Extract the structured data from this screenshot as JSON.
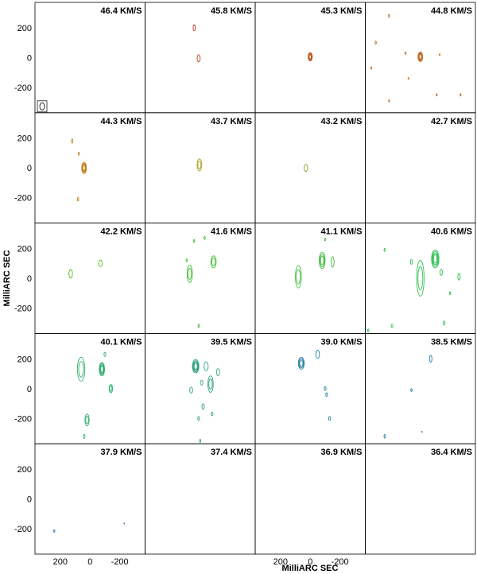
{
  "figure": {
    "xlabel": "MilliARC SEC",
    "ylabel": "MilliARC SEC",
    "x_ticks": [
      "200",
      "0",
      "-200"
    ],
    "y_ticks": [
      "200",
      "0",
      "-200"
    ],
    "beam_symbol": "beam-ellipse"
  },
  "chart_data": {
    "type": "contour",
    "xlim": [
      370,
      -370
    ],
    "ylim": [
      -370,
      370
    ],
    "units": "milliarcsec",
    "grid": false,
    "panels": [
      {
        "label": "46.4 KM/S",
        "color": "#c05020",
        "features": []
      },
      {
        "label": "45.8 KM/S",
        "color": "#c04020",
        "features": [
          {
            "x": 40,
            "y": 200,
            "r": [
              7,
              20
            ],
            "n": 1
          },
          {
            "x": 10,
            "y": -5,
            "r": [
              10,
              24
            ],
            "n": 1
          }
        ]
      },
      {
        "label": "45.3 KM/S",
        "color": "#c05520",
        "features": [
          {
            "x": 0,
            "y": 5,
            "r": [
              14,
              28
            ],
            "n": 4
          }
        ]
      },
      {
        "label": "44.8 KM/S",
        "color": "#c07030",
        "features": [
          {
            "x": 0,
            "y": 5,
            "r": [
              16,
              32
            ],
            "n": 5
          },
          {
            "x": 210,
            "y": 280,
            "r": [
              4,
              10
            ],
            "n": 1
          },
          {
            "x": 300,
            "y": 100,
            "r": [
              4,
              10
            ],
            "n": 1
          },
          {
            "x": 100,
            "y": 30,
            "r": [
              4,
              8
            ],
            "n": 1
          },
          {
            "x": 330,
            "y": -70,
            "r": [
              3,
              8
            ],
            "n": 1
          },
          {
            "x": -130,
            "y": 20,
            "r": [
              3,
              6
            ],
            "n": 1
          },
          {
            "x": 80,
            "y": -140,
            "r": [
              3,
              6
            ],
            "n": 1
          },
          {
            "x": -110,
            "y": -250,
            "r": [
              3,
              8
            ],
            "n": 1
          },
          {
            "x": -270,
            "y": -250,
            "r": [
              3,
              8
            ],
            "n": 1
          },
          {
            "x": 210,
            "y": -290,
            "r": [
              3,
              8
            ],
            "n": 1
          }
        ]
      },
      {
        "label": "44.3 KM/S",
        "color": "#c08020",
        "features": [
          {
            "x": 40,
            "y": 0,
            "r": [
              16,
              38
            ],
            "n": 4
          },
          {
            "x": 120,
            "y": 180,
            "r": [
              5,
              14
            ],
            "n": 1
          },
          {
            "x": 75,
            "y": 95,
            "r": [
              4,
              10
            ],
            "n": 1
          },
          {
            "x": 80,
            "y": -210,
            "r": [
              4,
              12
            ],
            "n": 1
          }
        ]
      },
      {
        "label": "43.7 KM/S",
        "color": "#a8a020",
        "features": [
          {
            "x": 5,
            "y": 20,
            "r": [
              16,
              40
            ],
            "n": 2
          }
        ]
      },
      {
        "label": "43.2 KM/S",
        "color": "#88a020",
        "features": [
          {
            "x": 30,
            "y": 0,
            "r": [
              12,
              24
            ],
            "n": 1
          }
        ]
      },
      {
        "label": "42.7 KM/S",
        "color": "#60a020",
        "features": []
      },
      {
        "label": "42.2 KM/S",
        "color": "#50c020",
        "features": [
          {
            "x": 130,
            "y": 30,
            "r": [
              12,
              28
            ],
            "n": 1
          },
          {
            "x": -70,
            "y": 100,
            "r": [
              12,
              22
            ],
            "n": 1
          }
        ]
      },
      {
        "label": "41.6 KM/S",
        "color": "#40c030",
        "features": [
          {
            "x": 70,
            "y": 30,
            "r": [
              18,
              58
            ],
            "n": 2
          },
          {
            "x": -90,
            "y": 110,
            "r": [
              18,
              40
            ],
            "n": 2
          },
          {
            "x": 40,
            "y": 250,
            "r": [
              4,
              10
            ],
            "n": 1
          },
          {
            "x": -30,
            "y": 270,
            "r": [
              4,
              10
            ],
            "n": 1
          },
          {
            "x": 10,
            "y": -320,
            "r": [
              4,
              12
            ],
            "n": 1
          },
          {
            "x": 90,
            "y": 120,
            "r": [
              4,
              10
            ],
            "n": 1
          }
        ]
      },
      {
        "label": "41.1 KM/S",
        "color": "#40c040",
        "features": [
          {
            "x": 80,
            "y": 10,
            "r": [
              20,
              75
            ],
            "n": 2
          },
          {
            "x": -80,
            "y": 120,
            "r": [
              20,
              55
            ],
            "n": 3
          },
          {
            "x": -150,
            "y": 110,
            "r": [
              10,
              35
            ],
            "n": 1
          },
          {
            "x": -100,
            "y": 260,
            "r": [
              4,
              10
            ],
            "n": 1
          }
        ]
      },
      {
        "label": "40.6 KM/S",
        "color": "#30c050",
        "features": [
          {
            "x": 0,
            "y": 0,
            "r": [
              25,
              120
            ],
            "n": 2
          },
          {
            "x": -100,
            "y": 130,
            "r": [
              25,
              60
            ],
            "n": 4
          },
          {
            "x": -140,
            "y": 40,
            "r": [
              8,
              20
            ],
            "n": 1
          },
          {
            "x": -260,
            "y": 10,
            "r": [
              8,
              22
            ],
            "n": 1
          },
          {
            "x": 240,
            "y": 190,
            "r": [
              4,
              10
            ],
            "n": 1
          },
          {
            "x": 60,
            "y": 110,
            "r": [
              6,
              16
            ],
            "n": 1
          },
          {
            "x": -200,
            "y": -100,
            "r": [
              4,
              10
            ],
            "n": 1
          },
          {
            "x": -160,
            "y": -300,
            "r": [
              6,
              14
            ],
            "n": 1
          },
          {
            "x": 190,
            "y": -320,
            "r": [
              6,
              12
            ],
            "n": 1
          },
          {
            "x": 350,
            "y": -350,
            "r": [
              4,
              10
            ],
            "n": 1
          }
        ]
      },
      {
        "label": "40.1 KM/S",
        "color": "#30b070",
        "features": [
          {
            "x": 60,
            "y": 130,
            "r": [
              25,
              80
            ],
            "n": 2
          },
          {
            "x": -80,
            "y": 130,
            "r": [
              18,
              45
            ],
            "n": 4
          },
          {
            "x": -140,
            "y": 0,
            "r": [
              12,
              28
            ],
            "n": 2
          },
          {
            "x": 20,
            "y": -210,
            "r": [
              14,
              40
            ],
            "n": 2
          },
          {
            "x": 40,
            "y": -320,
            "r": [
              6,
              14
            ],
            "n": 1
          },
          {
            "x": -100,
            "y": 230,
            "r": [
              6,
              14
            ],
            "n": 1
          }
        ]
      },
      {
        "label": "39.5 KM/S",
        "color": "#30a080",
        "features": [
          {
            "x": 30,
            "y": 150,
            "r": [
              22,
              45
            ],
            "n": 4
          },
          {
            "x": -70,
            "y": 30,
            "r": [
              18,
              55
            ],
            "n": 2
          },
          {
            "x": -40,
            "y": 150,
            "r": [
              14,
              30
            ],
            "n": 1
          },
          {
            "x": -120,
            "y": 110,
            "r": [
              10,
              24
            ],
            "n": 1
          },
          {
            "x": 60,
            "y": -10,
            "r": [
              10,
              20
            ],
            "n": 1
          },
          {
            "x": -20,
            "y": -120,
            "r": [
              8,
              18
            ],
            "n": 1
          },
          {
            "x": 10,
            "y": -200,
            "r": [
              6,
              12
            ],
            "n": 1
          },
          {
            "x": -80,
            "y": -170,
            "r": [
              6,
              12
            ],
            "n": 1
          },
          {
            "x": -10,
            "y": 40,
            "r": [
              8,
              16
            ],
            "n": 1
          },
          {
            "x": 0,
            "y": -350,
            "r": [
              4,
              10
            ],
            "n": 1
          }
        ]
      },
      {
        "label": "39.0 KM/S",
        "color": "#2080a0",
        "features": [
          {
            "x": 60,
            "y": 170,
            "r": [
              20,
              40
            ],
            "n": 3
          },
          {
            "x": -50,
            "y": 230,
            "r": [
              12,
              28
            ],
            "n": 1
          },
          {
            "x": -100,
            "y": 0,
            "r": [
              6,
              12
            ],
            "n": 1
          },
          {
            "x": -110,
            "y": -40,
            "r": [
              6,
              12
            ],
            "n": 1
          },
          {
            "x": -130,
            "y": -200,
            "r": [
              6,
              12
            ],
            "n": 1
          }
        ]
      },
      {
        "label": "38.5 KM/S",
        "color": "#2080b0",
        "features": [
          {
            "x": -70,
            "y": 200,
            "r": [
              8,
              22
            ],
            "n": 1
          },
          {
            "x": 60,
            "y": -10,
            "r": [
              4,
              10
            ],
            "n": 1
          },
          {
            "x": 240,
            "y": -320,
            "r": [
              4,
              12
            ],
            "n": 1
          },
          {
            "x": -10,
            "y": -290,
            "r": [
              2,
              4
            ],
            "n": 1
          }
        ]
      },
      {
        "label": "37.9 KM/S",
        "color": "#2070c0",
        "features": [
          {
            "x": 240,
            "y": -215,
            "r": [
              4,
              8
            ],
            "n": 1
          },
          {
            "x": -230,
            "y": -165,
            "r": [
              2,
              3
            ],
            "n": 1
          }
        ]
      },
      {
        "label": "37.4 KM/S",
        "color": "#2060c0",
        "features": []
      },
      {
        "label": "36.9 KM/S",
        "color": "#2050c0",
        "features": []
      },
      {
        "label": "36.4 KM/S",
        "color": "#2040c0",
        "features": []
      }
    ]
  }
}
